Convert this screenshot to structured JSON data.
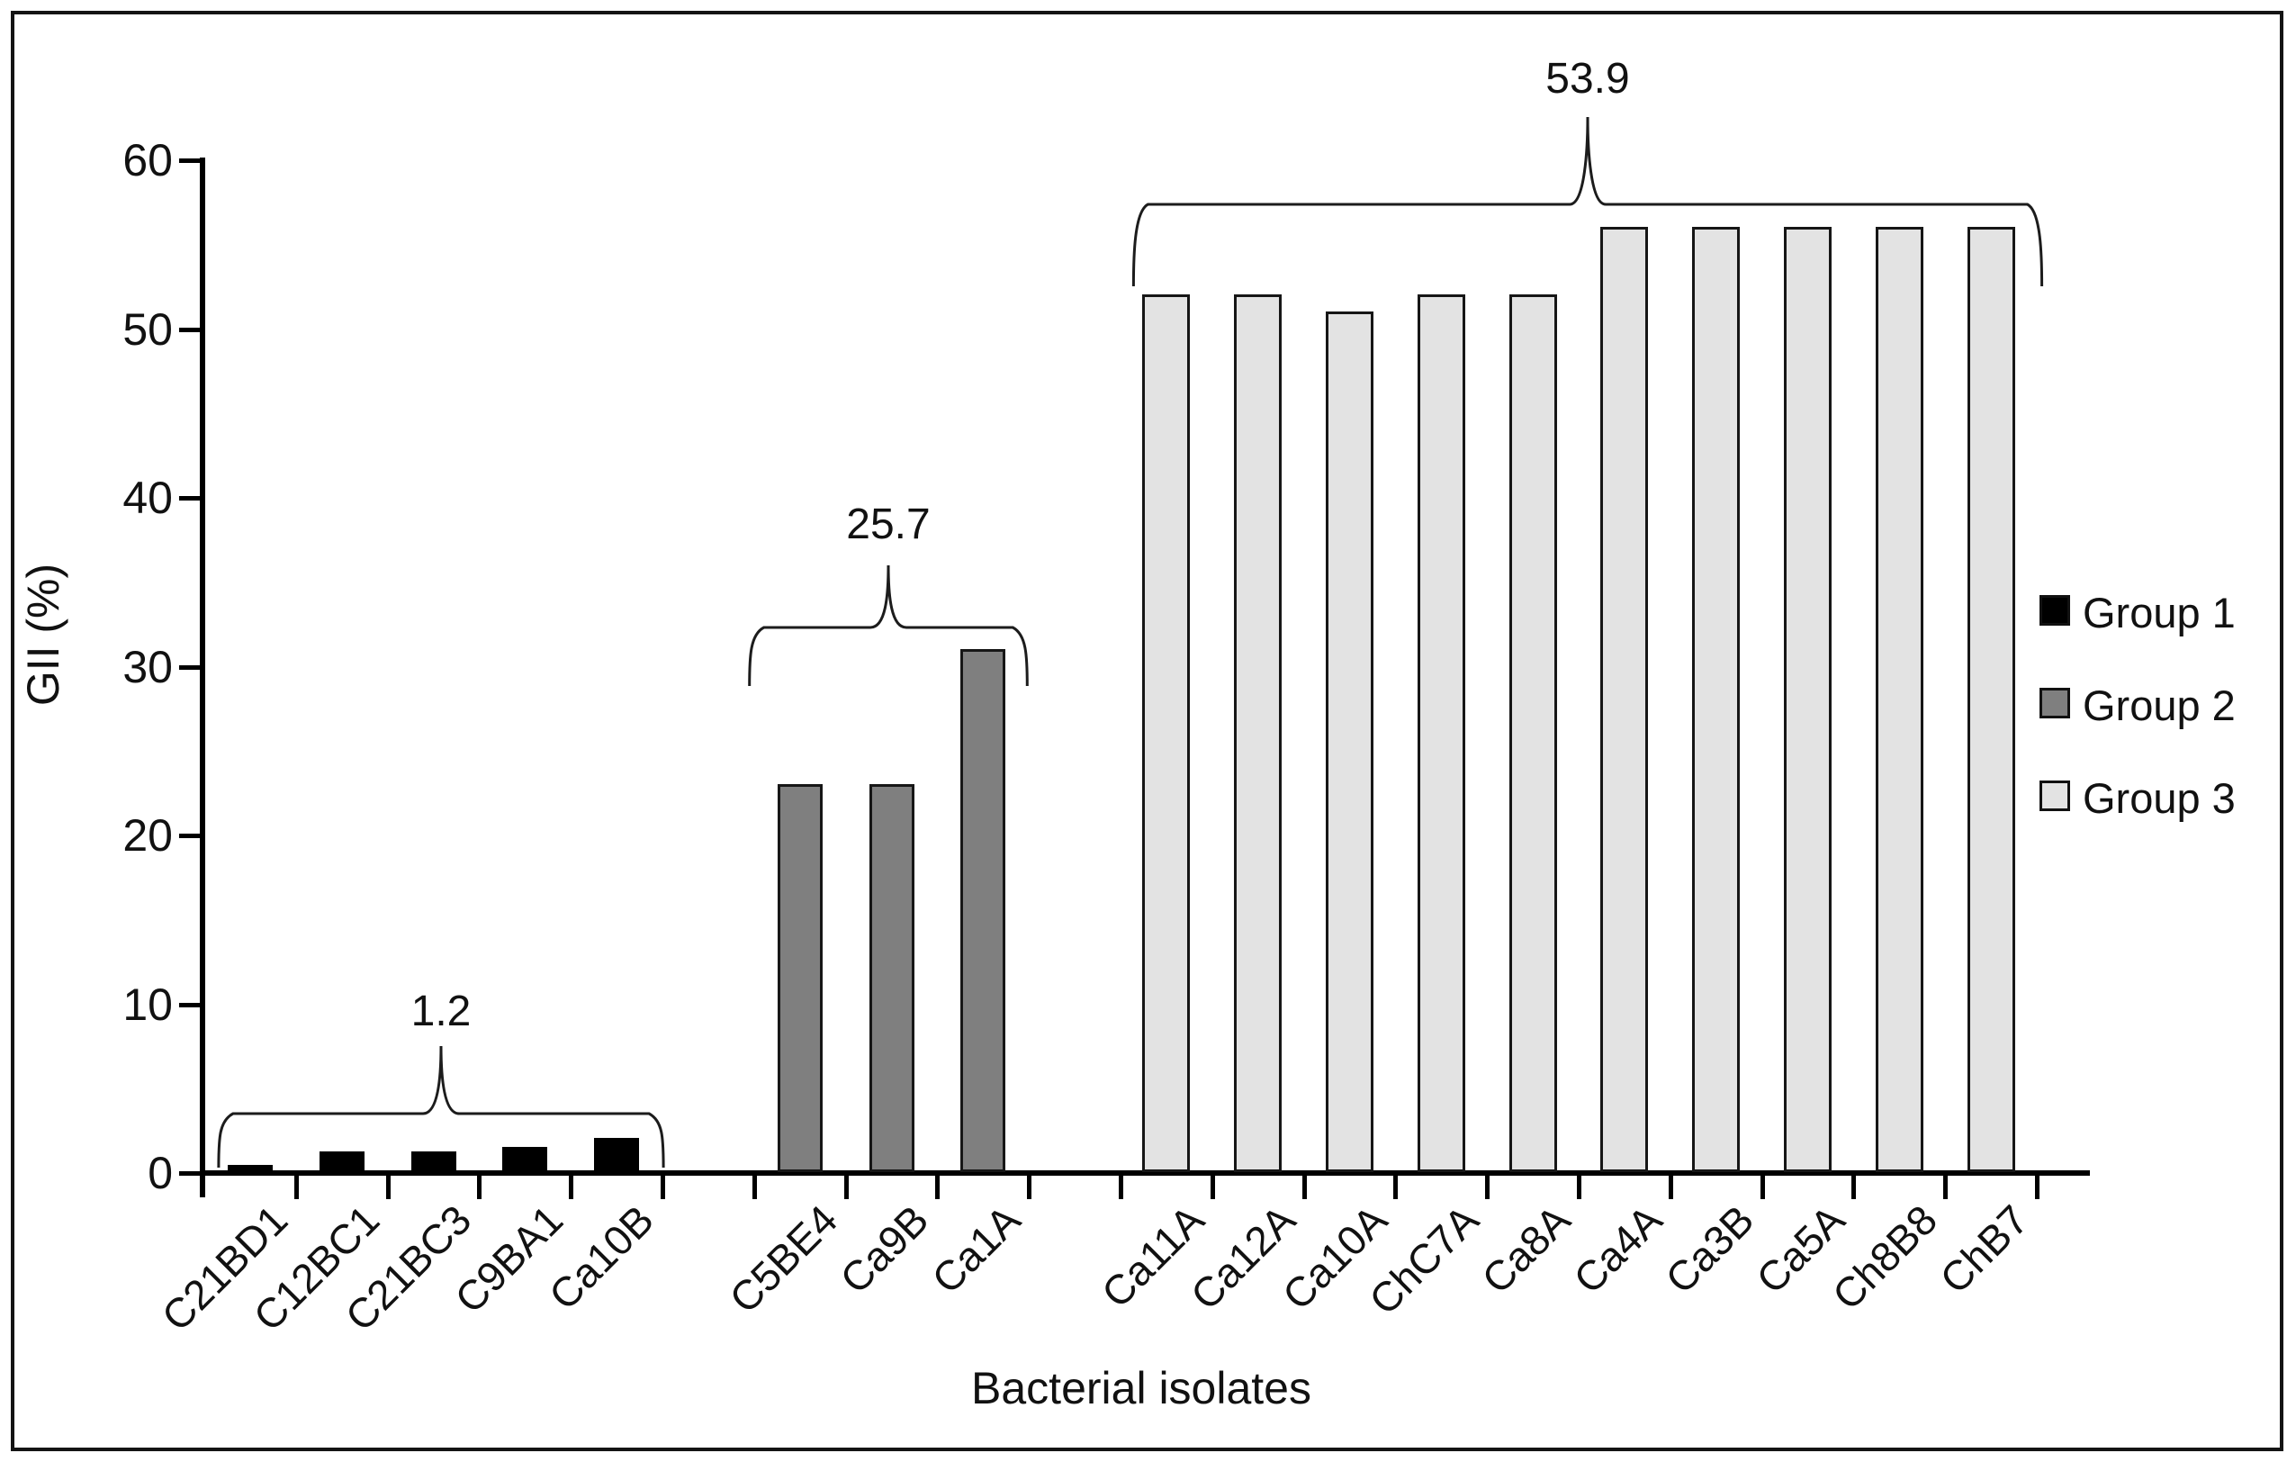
{
  "chart_data": {
    "type": "bar",
    "title": "",
    "xlabel": "Bacterial isolates",
    "ylabel": "GII (%)",
    "ylim": [
      0,
      60
    ],
    "yticks": [
      0,
      10,
      20,
      30,
      40,
      50,
      60
    ],
    "grid": false,
    "legend_position": "right",
    "legend": [
      {
        "label": "Group 1",
        "color": "#000000"
      },
      {
        "label": "Group 2",
        "color": "#7f7f7f"
      },
      {
        "label": "Group 3",
        "color": "#e3e3e3"
      }
    ],
    "groups": [
      {
        "name": "Group 1",
        "color": "#000000",
        "border_color": "#000000",
        "mean_label": "1.2",
        "categories": [
          "C21BD1",
          "C12BC1",
          "C21BC3",
          "C9BA1",
          "Ca10B"
        ],
        "values": [
          0.4,
          1.2,
          1.2,
          1.5,
          2.0
        ]
      },
      {
        "name": "Group 2",
        "color": "#7f7f7f",
        "border_color": "#161616",
        "mean_label": "25.7",
        "categories": [
          "C5BE4",
          "Ca9B",
          "Ca1A"
        ],
        "values": [
          23,
          23,
          31
        ]
      },
      {
        "name": "Group 3",
        "color": "#e3e3e3",
        "border_color": "#161616",
        "mean_label": "53.9",
        "categories": [
          "Ca11A",
          "Ca12A",
          "Ca10A",
          "ChC7A",
          "Ca8A",
          "Ca4A",
          "Ca3B",
          "Ca5A",
          "Ch8B8",
          "ChB7"
        ],
        "values": [
          52,
          52,
          51,
          52,
          52,
          56,
          56,
          56,
          56,
          56
        ]
      }
    ]
  }
}
